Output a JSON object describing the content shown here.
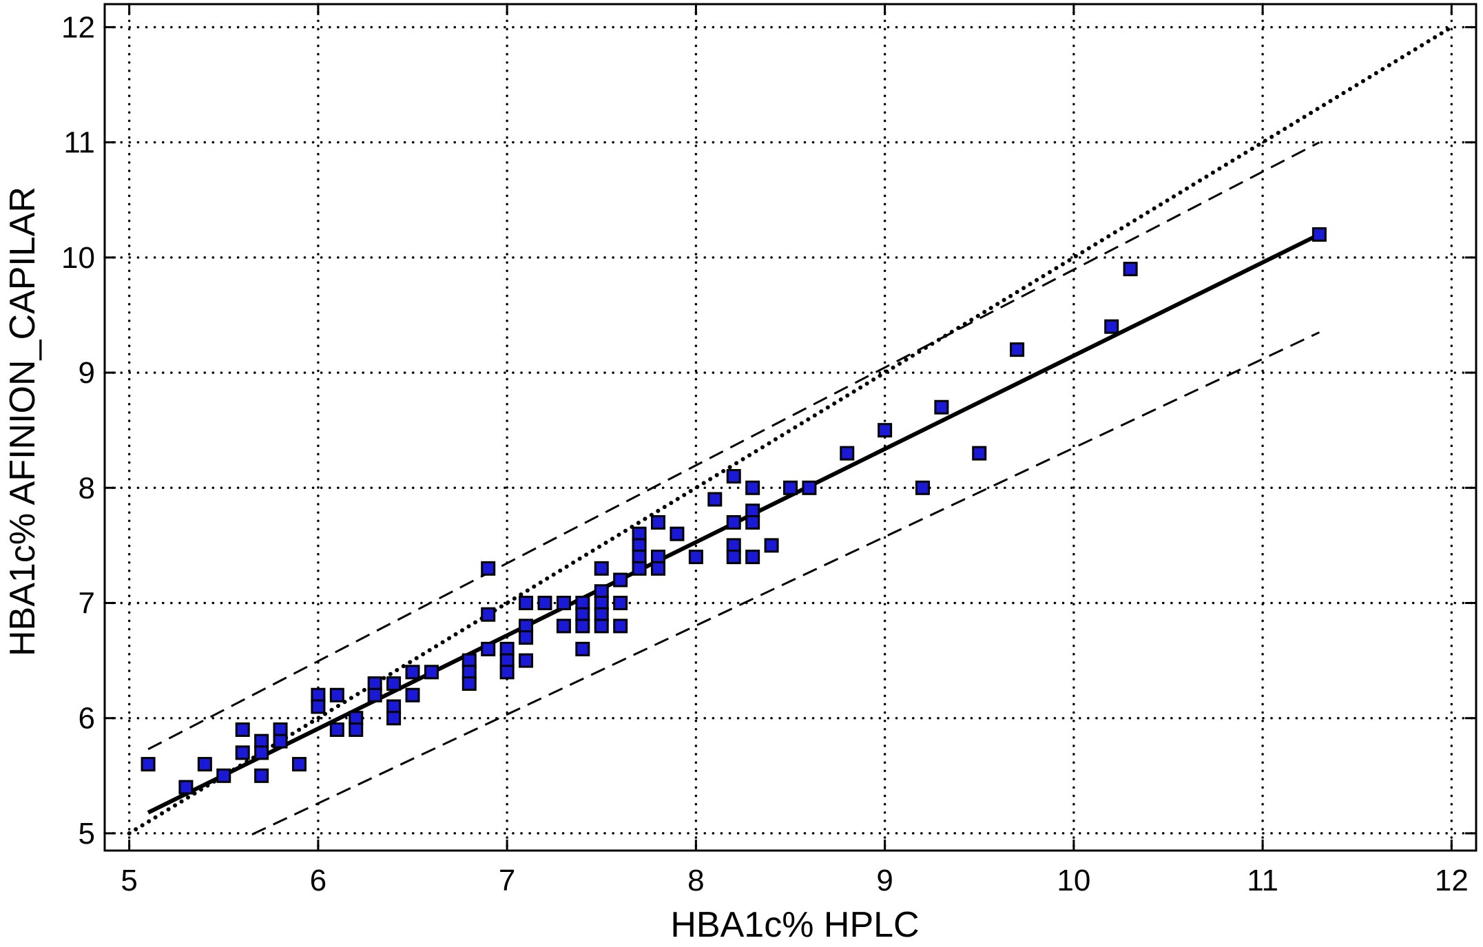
{
  "chart_data": {
    "type": "scatter",
    "title": "",
    "xlabel": "HBA1c% HPLC",
    "ylabel": "HBA1c% AFINION_CAPILAR",
    "xlim": [
      4.87,
      12.13
    ],
    "ylim": [
      4.85,
      12.2
    ],
    "xticks": [
      5,
      6,
      7,
      8,
      9,
      10,
      11,
      12
    ],
    "yticks": [
      5,
      6,
      7,
      8,
      9,
      10,
      11,
      12
    ],
    "grid": true,
    "colors": {
      "point": "#1a1ad6",
      "point_edge": "#000000",
      "lines": "#000000"
    },
    "points": [
      [
        5.1,
        5.6
      ],
      [
        5.3,
        5.4
      ],
      [
        5.4,
        5.6
      ],
      [
        5.5,
        5.5
      ],
      [
        5.6,
        5.9
      ],
      [
        5.6,
        5.7
      ],
      [
        5.7,
        5.8
      ],
      [
        5.7,
        5.7
      ],
      [
        5.7,
        5.5
      ],
      [
        5.8,
        5.9
      ],
      [
        5.8,
        5.8
      ],
      [
        5.9,
        5.6
      ],
      [
        6.0,
        6.2
      ],
      [
        6.0,
        6.1
      ],
      [
        6.1,
        6.2
      ],
      [
        6.1,
        5.9
      ],
      [
        6.2,
        6.0
      ],
      [
        6.2,
        5.9
      ],
      [
        6.3,
        6.3
      ],
      [
        6.3,
        6.2
      ],
      [
        6.4,
        6.3
      ],
      [
        6.4,
        6.1
      ],
      [
        6.4,
        6.0
      ],
      [
        6.5,
        6.4
      ],
      [
        6.5,
        6.2
      ],
      [
        6.6,
        6.4
      ],
      [
        6.8,
        6.5
      ],
      [
        6.8,
        6.4
      ],
      [
        6.8,
        6.3
      ],
      [
        6.9,
        7.3
      ],
      [
        6.9,
        6.9
      ],
      [
        6.9,
        6.6
      ],
      [
        7.0,
        6.6
      ],
      [
        7.0,
        6.5
      ],
      [
        7.0,
        6.4
      ],
      [
        7.1,
        7.0
      ],
      [
        7.1,
        6.8
      ],
      [
        7.1,
        6.7
      ],
      [
        7.1,
        6.5
      ],
      [
        7.2,
        7.0
      ],
      [
        7.3,
        7.0
      ],
      [
        7.3,
        6.8
      ],
      [
        7.4,
        7.0
      ],
      [
        7.4,
        6.9
      ],
      [
        7.4,
        6.8
      ],
      [
        7.4,
        6.6
      ],
      [
        7.5,
        7.3
      ],
      [
        7.5,
        7.1
      ],
      [
        7.5,
        7.0
      ],
      [
        7.5,
        6.9
      ],
      [
        7.5,
        6.8
      ],
      [
        7.6,
        7.2
      ],
      [
        7.6,
        7.0
      ],
      [
        7.6,
        6.8
      ],
      [
        7.7,
        7.6
      ],
      [
        7.7,
        7.5
      ],
      [
        7.7,
        7.4
      ],
      [
        7.7,
        7.3
      ],
      [
        7.8,
        7.7
      ],
      [
        7.8,
        7.4
      ],
      [
        7.8,
        7.3
      ],
      [
        7.9,
        7.6
      ],
      [
        8.0,
        7.4
      ],
      [
        8.1,
        7.9
      ],
      [
        8.2,
        8.1
      ],
      [
        8.2,
        7.7
      ],
      [
        8.2,
        7.5
      ],
      [
        8.2,
        7.4
      ],
      [
        8.3,
        8.0
      ],
      [
        8.3,
        7.8
      ],
      [
        8.3,
        7.7
      ],
      [
        8.3,
        7.4
      ],
      [
        8.4,
        7.5
      ],
      [
        8.5,
        8.0
      ],
      [
        8.6,
        8.0
      ],
      [
        8.8,
        8.3
      ],
      [
        9.0,
        8.5
      ],
      [
        9.2,
        8.0
      ],
      [
        9.3,
        8.7
      ],
      [
        9.5,
        8.3
      ],
      [
        9.7,
        9.2
      ],
      [
        10.2,
        9.4
      ],
      [
        10.3,
        9.9
      ],
      [
        11.3,
        10.2
      ]
    ],
    "lines": [
      {
        "style": "solid",
        "x": [
          5.1,
          11.3
        ],
        "y": [
          5.18,
          10.2
        ]
      },
      {
        "style": "dotted",
        "x": [
          5.0,
          12.0
        ],
        "y": [
          5.0,
          12.0
        ]
      },
      {
        "style": "dashed",
        "x": [
          5.1,
          11.3
        ],
        "y": [
          5.73,
          11.0
        ]
      },
      {
        "style": "dashed",
        "x": [
          5.65,
          11.3
        ],
        "y": [
          4.99,
          9.35
        ]
      }
    ]
  }
}
